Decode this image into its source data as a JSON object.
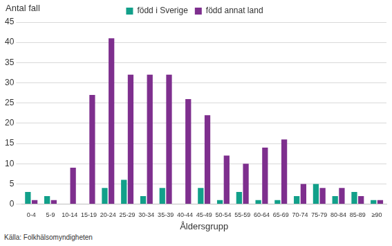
{
  "chart_data": {
    "type": "bar",
    "y_label": "Antal fall",
    "x_label": "Åldersgrupp",
    "annotations": [
      "Källa: Folkhälsomyndigheten"
    ],
    "categories": [
      "0-4",
      "5-9",
      "10-14",
      "15-19",
      "20-24",
      "25-29",
      "30-34",
      "35-39",
      "40-44",
      "45-49",
      "50-54",
      "55-59",
      "60-64",
      "65-69",
      "70-74",
      "75-79",
      "80-84",
      "85-89",
      "≥90"
    ],
    "series": [
      {
        "name": "född i Sverige",
        "color": "#12a08a",
        "values": [
          3,
          2,
          0,
          0,
          4,
          6,
          2,
          4,
          0,
          4,
          1,
          3,
          1,
          1,
          2,
          5,
          2,
          3,
          1
        ]
      },
      {
        "name": "född annat land",
        "color": "#7e2f8e",
        "values": [
          1,
          1,
          9,
          27,
          41,
          32,
          32,
          32,
          26,
          22,
          12,
          10,
          14,
          16,
          5,
          4,
          4,
          2,
          1
        ]
      }
    ],
    "ylim": [
      0,
      45
    ],
    "yticks": [
      0,
      5,
      10,
      15,
      20,
      25,
      30,
      35,
      40,
      45
    ],
    "grid": true,
    "legend": "top"
  }
}
